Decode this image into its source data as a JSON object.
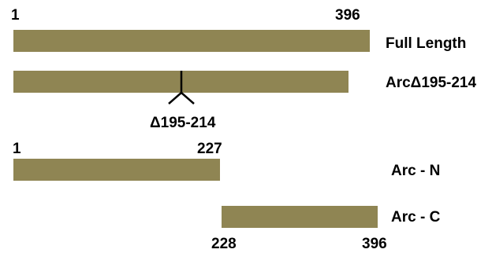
{
  "colors": {
    "bar_fill": "#8f8553",
    "text": "#000000",
    "marker": "#000000"
  },
  "constructs": {
    "full_length": {
      "name": "Full Length",
      "start_label": "1",
      "end_label": "396"
    },
    "deletion": {
      "name": "ArcΔ195-214",
      "deletion_label": "Δ195-214"
    },
    "arc_n": {
      "name": "Arc - N",
      "start_label": "1",
      "end_label": "227"
    },
    "arc_c": {
      "name": "Arc - C",
      "start_label": "228",
      "end_label": "396"
    }
  }
}
